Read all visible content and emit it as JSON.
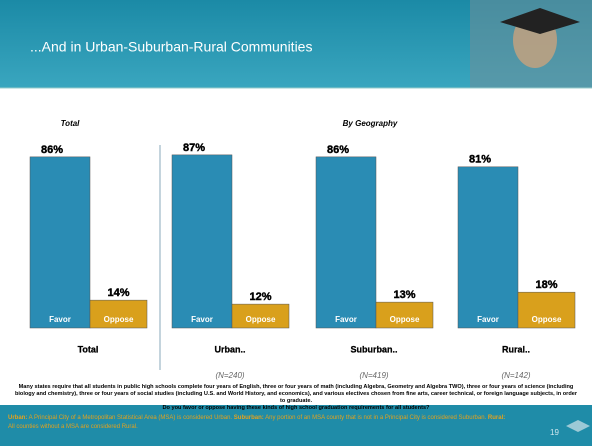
{
  "header": {
    "title": "...And in Urban-Suburban-Rural Communities"
  },
  "chart_data": {
    "type": "bar",
    "panel_titles": [
      "Total",
      "By Geography"
    ],
    "categories": [
      "Total",
      "Urban..",
      "Suburban..",
      "Rural.."
    ],
    "sample_sizes": [
      null,
      "(N=240)",
      "(N=419)",
      "(N=142)"
    ],
    "series": [
      {
        "name": "Favor",
        "color": "#2a8cb4",
        "values": [
          86,
          87,
          86,
          81
        ],
        "value_labels": [
          "86%",
          "87%",
          "86%",
          "81%"
        ]
      },
      {
        "name": "Oppose",
        "color": "#d9a01c",
        "values": [
          14,
          12,
          13,
          18
        ],
        "value_labels": [
          "14%",
          "12%",
          "13%",
          "18%"
        ]
      }
    ]
  },
  "question": [
    "Many states require that all students in public high schools complete four years of English, three or four years of math (including Algebra, Geometry and Algebra TWO), three or four years of science (including biology and chemistry), three or four years of social studies (including U.S. and World History, and economics), and various electives chosen from fine arts, career technical, or foreign language subjects, in order to graduate.",
    "Do you favor or oppose having these kinds of high school graduation requirements for all students?"
  ],
  "footnote": [
    {
      "label": "Urban:",
      "text": " A Principal City of a Metropolitan Statistical Area (MSA) is considered Urban. "
    },
    {
      "label": "Suburban:",
      "text": " Any portion of an MSA county that is not in a Principal City is considered Suburban. "
    },
    {
      "label": "Rural:",
      "text": " All counties without a MSA are considered Rural."
    }
  ],
  "page_number": "19"
}
